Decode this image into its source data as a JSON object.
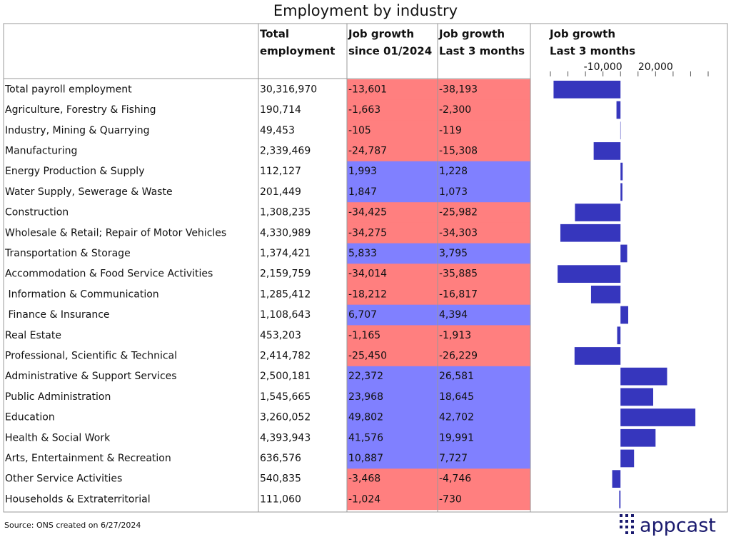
{
  "title": "Employment by industry",
  "table": {
    "headers": [
      [
        "Total",
        "employment"
      ],
      [
        "Job growth",
        "since 01/2024"
      ],
      [
        "Job growth",
        "Last 3 months"
      ]
    ],
    "rows": [
      [
        "Total payroll employment",
        "30,316,970",
        "-13,601",
        "-38,193"
      ],
      [
        "Agriculture, Forestry & Fishing",
        "190,714",
        "-1,663",
        "-2,300"
      ],
      [
        "Industry, Mining & Quarrying",
        "49,453",
        "-105",
        "-119"
      ],
      [
        "Manufacturing",
        "2,339,469",
        "-24,787",
        "-15,308"
      ],
      [
        "Energy Production & Supply",
        "112,127",
        "1,993",
        "1,228"
      ],
      [
        "Water Supply, Sewerage & Waste",
        "201,449",
        "1,847",
        "1,073"
      ],
      [
        "Construction",
        "1,308,235",
        "-34,425",
        "-25,982"
      ],
      [
        "Wholesale & Retail; Repair of Motor Vehicles",
        "4,330,989",
        "-34,275",
        "-34,303"
      ],
      [
        "Transportation & Storage",
        "1,374,421",
        "5,833",
        "3,795"
      ],
      [
        "Accommodation & Food Service Activities",
        "2,159,759",
        "-34,014",
        "-35,885"
      ],
      [
        " Information & Communication",
        "1,285,412",
        "-18,212",
        "-16,817"
      ],
      [
        " Finance & Insurance",
        "1,108,643",
        "6,707",
        "4,394"
      ],
      [
        "Real Estate",
        "453,203",
        "-1,165",
        "-1,913"
      ],
      [
        "Professional, Scientific & Technical",
        "2,414,782",
        "-25,450",
        "-26,229"
      ],
      [
        "Administrative & Support Services",
        "2,500,181",
        "22,372",
        "26,581"
      ],
      [
        "Public Administration",
        "1,545,665",
        "23,968",
        "18,645"
      ],
      [
        "Education",
        "3,260,052",
        "49,802",
        "42,702"
      ],
      [
        "Health & Social Work",
        "4,393,943",
        "41,576",
        "19,991"
      ],
      [
        "Arts, Entertainment & Recreation",
        "636,576",
        "10,887",
        "7,727"
      ],
      [
        "Other Service Activities",
        "540,835",
        "-3,468",
        "-4,746"
      ],
      [
        "Households & Extraterritorial",
        "111,060",
        "-1,024",
        "-730"
      ]
    ],
    "negative_color": "#ff7f7f",
    "positive_color": "#8080ff"
  },
  "chart_data": {
    "type": "bar",
    "title": [
      "Job growth",
      "Last 3 months"
    ],
    "color": "#3636bd",
    "values": [
      -38193,
      -2300,
      -119,
      -15308,
      1228,
      1073,
      -25982,
      -34303,
      3795,
      -35885,
      -16817,
      4394,
      -1913,
      -26229,
      26581,
      18645,
      42702,
      19991,
      7727,
      -4746,
      -730
    ],
    "xlim": [
      -40000,
      50000
    ],
    "xticks": [
      {
        "value": -40000,
        "label": null
      },
      {
        "value": -30000,
        "label": null
      },
      {
        "value": -20000,
        "label": null
      },
      {
        "value": -10000,
        "label": "-10,000"
      },
      {
        "value": 0,
        "label": null
      },
      {
        "value": 10000,
        "label": null
      },
      {
        "value": 20000,
        "label": "20,000"
      },
      {
        "value": 30000,
        "label": null
      },
      {
        "value": 40000,
        "label": null
      },
      {
        "value": 50000,
        "label": null
      }
    ]
  },
  "source": "Source: ONS created on 6/27/2024",
  "logo": "appcast"
}
